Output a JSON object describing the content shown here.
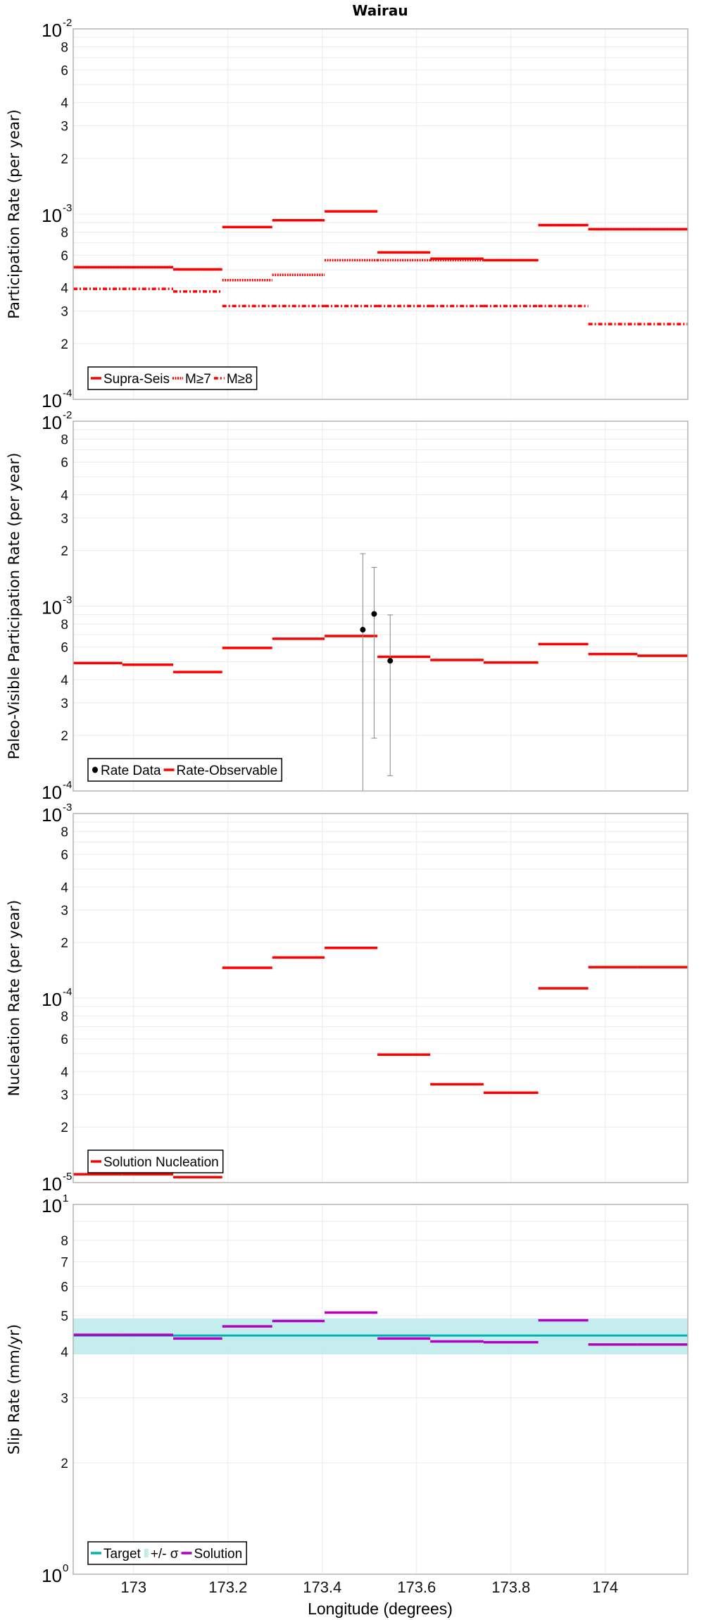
{
  "title": "Wairau",
  "xlabel": "Longitude (degrees)",
  "xlim": [
    172.872,
    174.175
  ],
  "xticks": [
    173,
    173.2,
    173.4,
    173.6,
    173.8,
    174
  ],
  "xtick_labels": [
    "173",
    "173.2",
    "173.4",
    "173.6",
    "173.8",
    "174"
  ],
  "x_bins": [
    172.872,
    172.976,
    173.084,
    173.188,
    173.294,
    173.405,
    173.517,
    173.629,
    173.742,
    173.858,
    173.964,
    174.068,
    174.175
  ],
  "colors": {
    "red": "#ff0000",
    "target": "#00b4b4",
    "band": "#c2ecec",
    "solution": "#b400c0",
    "grid": "#ebebeb",
    "frame": "#b4b4b4",
    "point": "#000000",
    "errorbar": "#888888"
  },
  "chart_data": [
    {
      "type": "line",
      "ylabel": "Participation Rate (per year)",
      "yscale": "log",
      "ylim": [
        0.0001,
        0.01
      ],
      "major_exponents": [
        "-2",
        "-3",
        "-4"
      ],
      "major_base": "10",
      "minor_labels": [
        "2",
        "3",
        "4",
        "6",
        "8"
      ],
      "legend": "bottom-left",
      "series": [
        {
          "name": "Supra-Seis",
          "style": "solid",
          "color": "#ff0000",
          "values": [
            0.000517,
            0.000517,
            0.000503,
            0.000851,
            0.000926,
            0.001034,
            0.000621,
            0.000575,
            0.000564,
            0.000872,
            0.000829,
            0.000829
          ]
        },
        {
          "name": "M≥7",
          "style": "dotted",
          "color": "#ff0000",
          "values": [
            0.000517,
            0.000517,
            0.000503,
            0.00044,
            0.00047,
            0.000564,
            0.000564,
            0.000564,
            0.000564,
            0.000872,
            0.000829,
            0.000829
          ]
        },
        {
          "name": "M≥8",
          "style": "dashdot",
          "color": "#ff0000",
          "values": [
            0.000395,
            0.000395,
            0.000382,
            0.000319,
            0.000319,
            0.000319,
            0.000319,
            0.000319,
            0.000319,
            0.000319,
            0.000255,
            0.000255
          ]
        }
      ]
    },
    {
      "type": "line",
      "ylabel": "Paleo-Visible Participation Rate (per year)",
      "yscale": "log",
      "ylim": [
        0.0001,
        0.01
      ],
      "major_exponents": [
        "-2",
        "-3",
        "-4"
      ],
      "major_base": "10",
      "minor_labels": [
        "2",
        "3",
        "4",
        "6",
        "8"
      ],
      "legend": "bottom-left",
      "points": {
        "name": "Rate Data",
        "data": [
          {
            "x": 173.486,
            "y": 0.000745,
            "low": 5e-05,
            "high": 0.00192
          },
          {
            "x": 173.51,
            "y": 0.000907,
            "low": 0.000193,
            "high": 0.00162
          },
          {
            "x": 173.544,
            "y": 0.000506,
            "low": 0.000121,
            "high": 0.000896
          }
        ]
      },
      "series": [
        {
          "name": "Rate-Observable",
          "style": "solid",
          "color": "#ff0000",
          "values": [
            0.000492,
            0.000482,
            0.00044,
            0.000594,
            0.000666,
            0.000689,
            0.000532,
            0.000511,
            0.000495,
            0.000623,
            0.00055,
            0.000539
          ]
        }
      ]
    },
    {
      "type": "line",
      "ylabel": "Nucleation Rate (per year)",
      "yscale": "log",
      "ylim": [
        1e-05,
        0.001
      ],
      "major_exponents": [
        "-3",
        "-4",
        "-5"
      ],
      "major_base": "10",
      "minor_labels": [
        "2",
        "3",
        "4",
        "6",
        "8"
      ],
      "legend": "bottom-left",
      "series": [
        {
          "name": "Solution Nucleation",
          "style": "solid",
          "color": "#ff0000",
          "values": [
            1.11e-05,
            1.11e-05,
            1.07e-05,
            0.000146,
            0.000166,
            0.000187,
            4.94e-05,
            3.41e-05,
            3.07e-05,
            0.000113,
            0.000147,
            0.000147
          ]
        }
      ]
    },
    {
      "type": "line",
      "ylabel": "Slip Rate (mm/yr)",
      "yscale": "log",
      "ylim": [
        1,
        10
      ],
      "major_exponents": [
        "1",
        "0"
      ],
      "major_base": "10",
      "minor_labels": [
        "2",
        "3",
        "4",
        "5",
        "6",
        "7",
        "8"
      ],
      "legend": "bottom-left",
      "target": {
        "name": "Target",
        "value": 4.42,
        "color": "#00b4b4"
      },
      "band": {
        "name": "+/- σ",
        "low": 3.93,
        "high": 4.92,
        "color": "#c2ecec"
      },
      "series": [
        {
          "name": "Solution",
          "style": "solid",
          "color": "#b400c0",
          "values": [
            4.44,
            4.44,
            4.34,
            4.68,
            4.84,
            5.1,
            4.34,
            4.26,
            4.24,
            4.86,
            4.18,
            4.18
          ]
        }
      ]
    }
  ]
}
